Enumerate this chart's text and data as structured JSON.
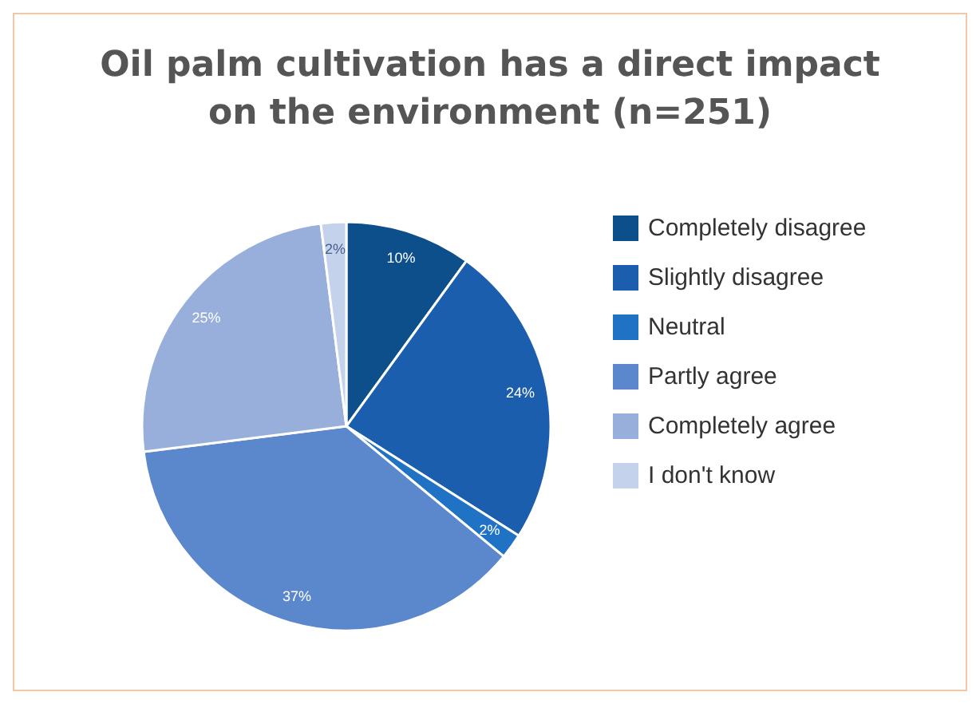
{
  "chart_data": {
    "type": "pie",
    "title": "Oil palm cultivation has a direct impact\non the environment (n=251)",
    "categories": [
      "Completely disagree",
      "Slightly disagree",
      "Neutral",
      "Partly agree",
      "Completely agree",
      "I don't know"
    ],
    "values": [
      10,
      24,
      2,
      37,
      25,
      2
    ],
    "colors": [
      "#0c4f8a",
      "#1a5ead",
      "#1f72c4",
      "#5b87cc",
      "#98aedb",
      "#c5d2ec"
    ],
    "value_labels": [
      "10%",
      "24%",
      "2%",
      "37%",
      "25%",
      "2%"
    ],
    "legend": "right"
  }
}
